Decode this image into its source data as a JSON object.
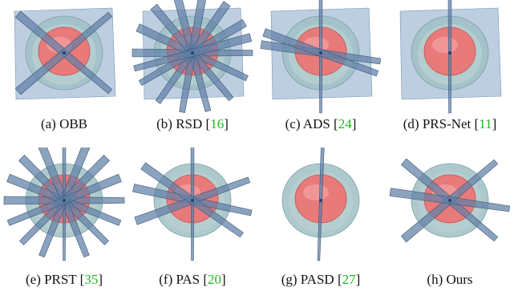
{
  "figure": {
    "panels": [
      {
        "label": "(a) OBB",
        "ref": ""
      },
      {
        "label": "(b) RSD [",
        "ref": "16"
      },
      {
        "label": "(c) ADS [",
        "ref": "24"
      },
      {
        "label": "(d) PRS-Net [",
        "ref": "11"
      },
      {
        "label": "(e) PRST [",
        "ref": "35"
      },
      {
        "label": "(f) PAS [",
        "ref": "20"
      },
      {
        "label": "(g) PASD [",
        "ref": "27"
      },
      {
        "label": "(h) Ours",
        "ref": ""
      }
    ],
    "colors": {
      "plane": "#5f7fa6",
      "base": "#9fc0c4",
      "dome": "#e87a7a",
      "ref": "#1db81d"
    }
  }
}
